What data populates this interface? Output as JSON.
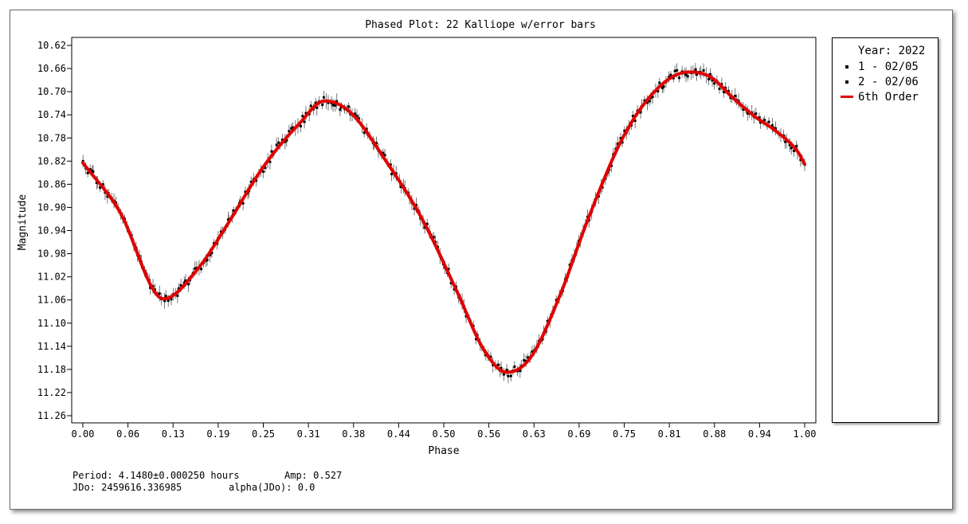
{
  "chart_data": {
    "type": "scatter",
    "title": "Phased Plot: 22 Kalliope w/error bars",
    "xlabel": "Phase",
    "ylabel": "Magnitude",
    "xlim": [
      0.0,
      1.0
    ],
    "ylim": [
      10.62,
      11.26
    ],
    "y_inverted": true,
    "grid": false,
    "legend_position": "right",
    "x_ticks": [
      "0.00",
      "0.06",
      "0.13",
      "0.19",
      "0.25",
      "0.31",
      "0.38",
      "0.44",
      "0.50",
      "0.56",
      "0.63",
      "0.69",
      "0.75",
      "0.81",
      "0.88",
      "0.94",
      "1.00"
    ],
    "y_ticks": [
      "10.62",
      "10.66",
      "10.70",
      "10.74",
      "10.78",
      "10.82",
      "10.86",
      "10.90",
      "10.94",
      "10.98",
      "11.02",
      "11.06",
      "11.10",
      "11.14",
      "11.18",
      "11.22",
      "11.26"
    ],
    "fit_curve": {
      "name": "6th Order",
      "color": "#e00000",
      "x": [
        0.0,
        0.05,
        0.112,
        0.16,
        0.2,
        0.25,
        0.3,
        0.335,
        0.37,
        0.42,
        0.47,
        0.52,
        0.555,
        0.587,
        0.62,
        0.66,
        0.7,
        0.75,
        0.8,
        0.84,
        0.87,
        0.9,
        0.93,
        0.96,
        0.99,
        1.0
      ],
      "y": [
        10.823,
        10.905,
        11.058,
        11.005,
        10.93,
        10.83,
        10.755,
        10.716,
        10.735,
        10.82,
        10.92,
        11.05,
        11.145,
        11.185,
        11.16,
        11.055,
        10.92,
        10.775,
        10.69,
        10.666,
        10.675,
        10.71,
        10.742,
        10.768,
        10.803,
        10.825
      ]
    },
    "series": [
      {
        "name": "1 - 02/05",
        "color": "#000000",
        "marker": "square",
        "error_bars": true,
        "x_range": [
          0.0,
          0.5
        ]
      },
      {
        "name": "2 - 02/06",
        "color": "#000000",
        "marker": "square",
        "error_bars": true,
        "x_range": [
          0.5,
          1.0
        ]
      }
    ]
  },
  "legend": {
    "title": "Year: 2022",
    "items": [
      {
        "label": "1 - 02/05",
        "symbol": "dot"
      },
      {
        "label": "2 - 02/06",
        "symbol": "dot"
      },
      {
        "label": "6th Order",
        "symbol": "line"
      }
    ]
  },
  "footer": {
    "period": "Period: 4.1480±0.000250 hours",
    "amp": "Amp: 0.527",
    "jdo": "JDo: 2459616.336985",
    "alpha": "alpha(JDo): 0.0"
  }
}
